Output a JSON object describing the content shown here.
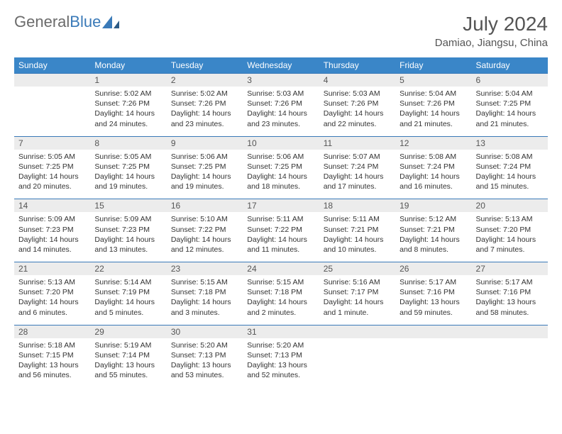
{
  "logo": {
    "part1": "General",
    "part2": "Blue"
  },
  "title": "July 2024",
  "location": "Damiao, Jiangsu, China",
  "headers": [
    "Sunday",
    "Monday",
    "Tuesday",
    "Wednesday",
    "Thursday",
    "Friday",
    "Saturday"
  ],
  "colors": {
    "header_bg": "#3a86c8",
    "border": "#3a7ab8",
    "daynum_bg": "#ececec",
    "text": "#333333",
    "muted": "#555555"
  },
  "weeks": [
    [
      {
        "n": "",
        "sr": "",
        "ss": "",
        "dl": ""
      },
      {
        "n": "1",
        "sr": "Sunrise: 5:02 AM",
        "ss": "Sunset: 7:26 PM",
        "dl": "Daylight: 14 hours and 24 minutes."
      },
      {
        "n": "2",
        "sr": "Sunrise: 5:02 AM",
        "ss": "Sunset: 7:26 PM",
        "dl": "Daylight: 14 hours and 23 minutes."
      },
      {
        "n": "3",
        "sr": "Sunrise: 5:03 AM",
        "ss": "Sunset: 7:26 PM",
        "dl": "Daylight: 14 hours and 23 minutes."
      },
      {
        "n": "4",
        "sr": "Sunrise: 5:03 AM",
        "ss": "Sunset: 7:26 PM",
        "dl": "Daylight: 14 hours and 22 minutes."
      },
      {
        "n": "5",
        "sr": "Sunrise: 5:04 AM",
        "ss": "Sunset: 7:26 PM",
        "dl": "Daylight: 14 hours and 21 minutes."
      },
      {
        "n": "6",
        "sr": "Sunrise: 5:04 AM",
        "ss": "Sunset: 7:25 PM",
        "dl": "Daylight: 14 hours and 21 minutes."
      }
    ],
    [
      {
        "n": "7",
        "sr": "Sunrise: 5:05 AM",
        "ss": "Sunset: 7:25 PM",
        "dl": "Daylight: 14 hours and 20 minutes."
      },
      {
        "n": "8",
        "sr": "Sunrise: 5:05 AM",
        "ss": "Sunset: 7:25 PM",
        "dl": "Daylight: 14 hours and 19 minutes."
      },
      {
        "n": "9",
        "sr": "Sunrise: 5:06 AM",
        "ss": "Sunset: 7:25 PM",
        "dl": "Daylight: 14 hours and 19 minutes."
      },
      {
        "n": "10",
        "sr": "Sunrise: 5:06 AM",
        "ss": "Sunset: 7:25 PM",
        "dl": "Daylight: 14 hours and 18 minutes."
      },
      {
        "n": "11",
        "sr": "Sunrise: 5:07 AM",
        "ss": "Sunset: 7:24 PM",
        "dl": "Daylight: 14 hours and 17 minutes."
      },
      {
        "n": "12",
        "sr": "Sunrise: 5:08 AM",
        "ss": "Sunset: 7:24 PM",
        "dl": "Daylight: 14 hours and 16 minutes."
      },
      {
        "n": "13",
        "sr": "Sunrise: 5:08 AM",
        "ss": "Sunset: 7:24 PM",
        "dl": "Daylight: 14 hours and 15 minutes."
      }
    ],
    [
      {
        "n": "14",
        "sr": "Sunrise: 5:09 AM",
        "ss": "Sunset: 7:23 PM",
        "dl": "Daylight: 14 hours and 14 minutes."
      },
      {
        "n": "15",
        "sr": "Sunrise: 5:09 AM",
        "ss": "Sunset: 7:23 PM",
        "dl": "Daylight: 14 hours and 13 minutes."
      },
      {
        "n": "16",
        "sr": "Sunrise: 5:10 AM",
        "ss": "Sunset: 7:22 PM",
        "dl": "Daylight: 14 hours and 12 minutes."
      },
      {
        "n": "17",
        "sr": "Sunrise: 5:11 AM",
        "ss": "Sunset: 7:22 PM",
        "dl": "Daylight: 14 hours and 11 minutes."
      },
      {
        "n": "18",
        "sr": "Sunrise: 5:11 AM",
        "ss": "Sunset: 7:21 PM",
        "dl": "Daylight: 14 hours and 10 minutes."
      },
      {
        "n": "19",
        "sr": "Sunrise: 5:12 AM",
        "ss": "Sunset: 7:21 PM",
        "dl": "Daylight: 14 hours and 8 minutes."
      },
      {
        "n": "20",
        "sr": "Sunrise: 5:13 AM",
        "ss": "Sunset: 7:20 PM",
        "dl": "Daylight: 14 hours and 7 minutes."
      }
    ],
    [
      {
        "n": "21",
        "sr": "Sunrise: 5:13 AM",
        "ss": "Sunset: 7:20 PM",
        "dl": "Daylight: 14 hours and 6 minutes."
      },
      {
        "n": "22",
        "sr": "Sunrise: 5:14 AM",
        "ss": "Sunset: 7:19 PM",
        "dl": "Daylight: 14 hours and 5 minutes."
      },
      {
        "n": "23",
        "sr": "Sunrise: 5:15 AM",
        "ss": "Sunset: 7:18 PM",
        "dl": "Daylight: 14 hours and 3 minutes."
      },
      {
        "n": "24",
        "sr": "Sunrise: 5:15 AM",
        "ss": "Sunset: 7:18 PM",
        "dl": "Daylight: 14 hours and 2 minutes."
      },
      {
        "n": "25",
        "sr": "Sunrise: 5:16 AM",
        "ss": "Sunset: 7:17 PM",
        "dl": "Daylight: 14 hours and 1 minute."
      },
      {
        "n": "26",
        "sr": "Sunrise: 5:17 AM",
        "ss": "Sunset: 7:16 PM",
        "dl": "Daylight: 13 hours and 59 minutes."
      },
      {
        "n": "27",
        "sr": "Sunrise: 5:17 AM",
        "ss": "Sunset: 7:16 PM",
        "dl": "Daylight: 13 hours and 58 minutes."
      }
    ],
    [
      {
        "n": "28",
        "sr": "Sunrise: 5:18 AM",
        "ss": "Sunset: 7:15 PM",
        "dl": "Daylight: 13 hours and 56 minutes."
      },
      {
        "n": "29",
        "sr": "Sunrise: 5:19 AM",
        "ss": "Sunset: 7:14 PM",
        "dl": "Daylight: 13 hours and 55 minutes."
      },
      {
        "n": "30",
        "sr": "Sunrise: 5:20 AM",
        "ss": "Sunset: 7:13 PM",
        "dl": "Daylight: 13 hours and 53 minutes."
      },
      {
        "n": "31",
        "sr": "Sunrise: 5:20 AM",
        "ss": "Sunset: 7:13 PM",
        "dl": "Daylight: 13 hours and 52 minutes."
      },
      {
        "n": "",
        "sr": "",
        "ss": "",
        "dl": ""
      },
      {
        "n": "",
        "sr": "",
        "ss": "",
        "dl": ""
      },
      {
        "n": "",
        "sr": "",
        "ss": "",
        "dl": ""
      }
    ]
  ]
}
